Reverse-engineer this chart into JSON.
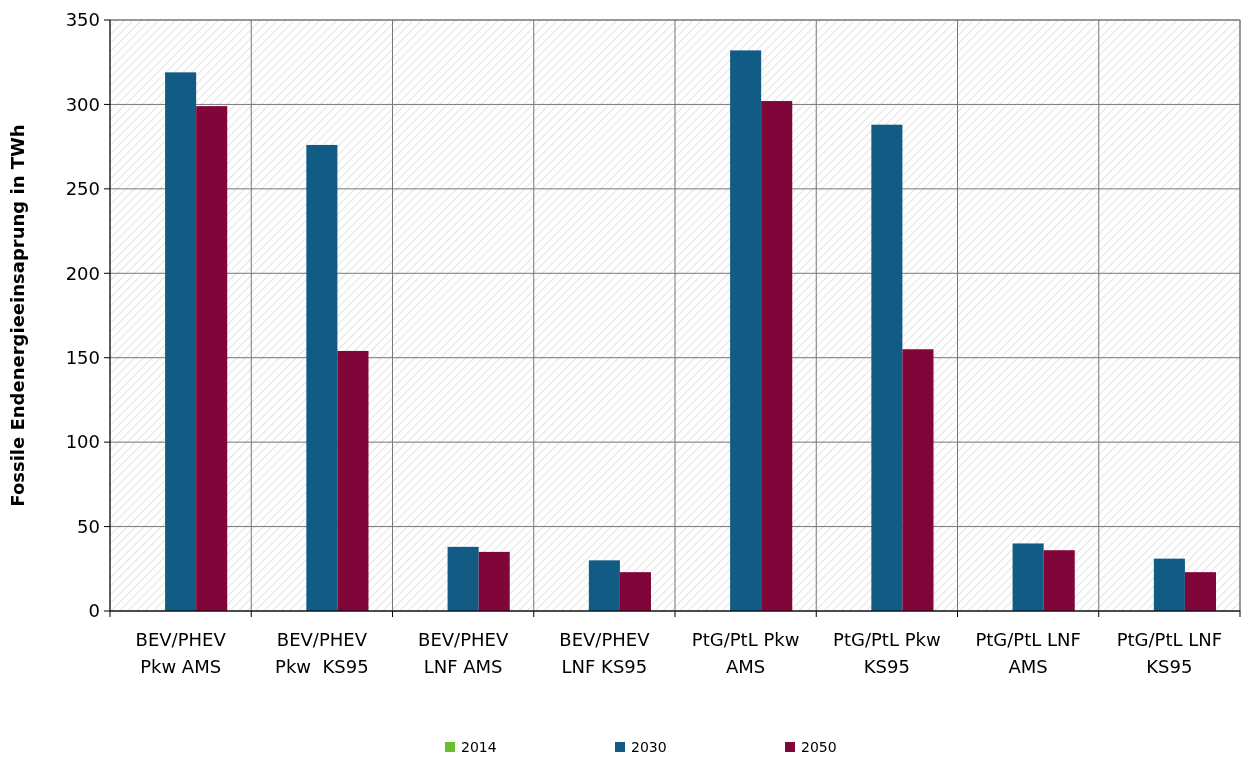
{
  "chart_data": {
    "type": "bar",
    "ylabel": "Fossile Endenergieeinsaprung in TWh",
    "categories": [
      "BEV/PHEV Pkw AMS",
      "BEV/PHEV Pkw  KS95",
      "BEV/PHEV LNF AMS",
      "BEV/PHEV LNF KS95",
      "PtG/PtL Pkw AMS",
      "PtG/PtL Pkw KS95",
      "PtG/PtL LNF AMS",
      "PtG/PtL LNF KS95"
    ],
    "series": [
      {
        "name": "2014",
        "color": "#6abf2f",
        "values": [
          0,
          0,
          0,
          0,
          0,
          0,
          0,
          0
        ]
      },
      {
        "name": "2030",
        "color": "#125b84",
        "values": [
          319,
          276,
          38,
          30,
          332,
          288,
          40,
          31
        ]
      },
      {
        "name": "2050",
        "color": "#800538",
        "values": [
          299,
          154,
          35,
          23,
          302,
          155,
          36,
          23
        ]
      }
    ],
    "ylim": [
      0,
      350
    ],
    "yticks": [
      0,
      50,
      100,
      150,
      200,
      250,
      300,
      350
    ],
    "grid": true,
    "legend": "bottom"
  }
}
